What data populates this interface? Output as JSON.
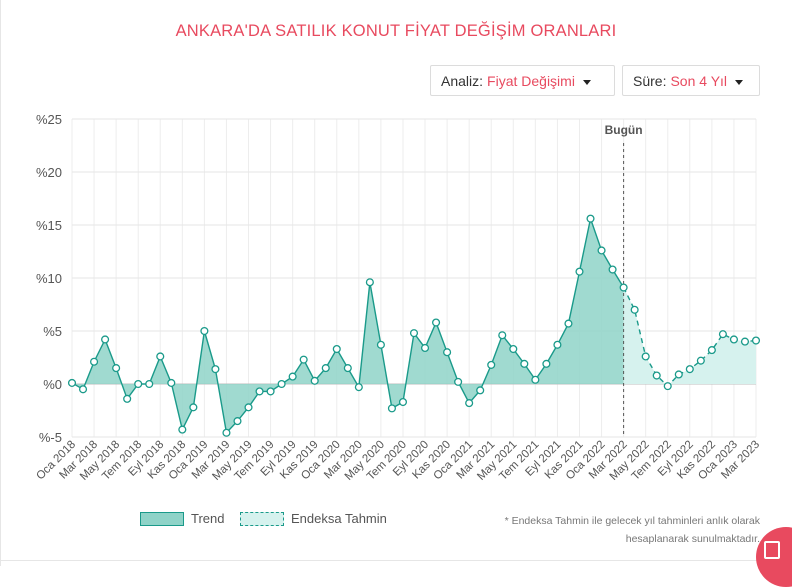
{
  "title": "ANKARA'DA SATILIK KONUT FİYAT DEĞİŞİM ORANLARI",
  "controls": {
    "analysis_label": "Analiz:",
    "analysis_value": "Fiyat Değişimi",
    "period_label": "Süre:",
    "period_value": "Son 4 Yıl"
  },
  "chart_data": {
    "type": "area",
    "today_marker": "Bugün",
    "ylim": [
      -5,
      25
    ],
    "y_ticks": [
      -5,
      0,
      5,
      10,
      15,
      20,
      25
    ],
    "y_tick_labels": [
      "%-5",
      "%0",
      "%5",
      "%10",
      "%15",
      "%20",
      "%25"
    ],
    "x_tick_labels": [
      "Oca 2018",
      "Mar 2018",
      "May 2018",
      "Tem 2018",
      "Eyl 2018",
      "Kas 2018",
      "Oca 2019",
      "Mar 2019",
      "May 2019",
      "Tem 2019",
      "Eyl 2019",
      "Kas 2019",
      "Oca 2020",
      "Mar 2020",
      "May 2020",
      "Tem 2020",
      "Eyl 2020",
      "Kas 2020",
      "Oca 2021",
      "Mar 2021",
      "May 2021",
      "Tem 2021",
      "Eyl 2021",
      "Kas 2021",
      "Oca 2022",
      "Mar 2022",
      "May 2022",
      "Tem 2022",
      "Eyl 2022",
      "Kas 2022",
      "Oca 2023",
      "Mar 2023"
    ],
    "grid": true,
    "series": [
      {
        "name": "Trend",
        "color": "#1a9a8a",
        "fill": "#8fd3c8",
        "values": [
          0.1,
          -0.5,
          2.1,
          4.2,
          1.5,
          -1.4,
          0.0,
          0.0,
          2.6,
          0.1,
          -4.3,
          -2.2,
          5.0,
          1.4,
          -4.6,
          -3.5,
          -2.2,
          -0.7,
          -0.7,
          0.0,
          0.7,
          2.3,
          0.3,
          1.5,
          3.3,
          1.5,
          -0.3,
          9.6,
          3.7,
          -2.3,
          -1.7,
          4.8,
          3.4,
          5.8,
          3.0,
          0.2,
          -1.8,
          -0.6,
          1.8,
          4.6,
          3.3,
          1.9,
          0.4,
          1.9,
          3.7,
          5.7,
          10.6,
          15.6,
          12.6,
          10.8,
          9.1
        ]
      },
      {
        "name": "Endeksa Tahmin",
        "color": "#1a9a8a",
        "fill": "#d6f2ee",
        "dashed": true,
        "values": [
          9.1,
          7.0,
          2.6,
          0.8,
          -0.2,
          0.9,
          1.4,
          2.2,
          3.2,
          4.7,
          4.2,
          4.0,
          4.1
        ]
      }
    ]
  },
  "legend": {
    "trend": "Trend",
    "forecast": "Endeksa Tahmin"
  },
  "footnote": {
    "line1": "* Endeksa Tahmin ile gelecek yıl tahminleri anlık olarak",
    "line2": "hesaplanarak sunulmaktadır."
  },
  "colors": {
    "accent": "#e84a5f",
    "line": "#1a9a8a",
    "trend_fill": "#8fd3c8",
    "forecast_fill": "#d6f2ee"
  }
}
